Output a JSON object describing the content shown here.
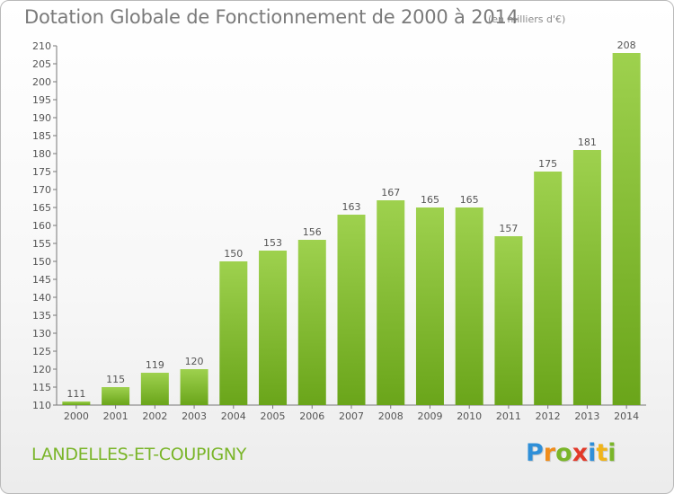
{
  "chart_data": {
    "type": "bar",
    "title": "Dotation Globale de Fonctionnement de 2000 à 2014",
    "subtitle": "(en milliers d'€)",
    "categories": [
      "2000",
      "2001",
      "2002",
      "2003",
      "2004",
      "2005",
      "2006",
      "2007",
      "2008",
      "2009",
      "2010",
      "2011",
      "2012",
      "2013",
      "2014"
    ],
    "values": [
      111,
      115,
      119,
      120,
      150,
      153,
      156,
      163,
      167,
      165,
      165,
      157,
      175,
      181,
      208
    ],
    "ylim": [
      110,
      210
    ],
    "ytick_step": 5,
    "grid": false,
    "bar_color_top": "#9ed14e",
    "bar_color_bottom": "#6aa51a"
  },
  "footer": {
    "commune": "LANDELLES-ET-COUPIGNY",
    "logo_letters": [
      {
        "ch": "P",
        "color": "#2f8fd8"
      },
      {
        "ch": "r",
        "color": "#f08c1a"
      },
      {
        "ch": "o",
        "color": "#7ab529"
      },
      {
        "ch": "x",
        "color": "#e23a2a"
      },
      {
        "ch": "i",
        "color": "#2f8fd8"
      },
      {
        "ch": "t",
        "color": "#f0b41a"
      },
      {
        "ch": "i",
        "color": "#7ab529"
      }
    ]
  }
}
